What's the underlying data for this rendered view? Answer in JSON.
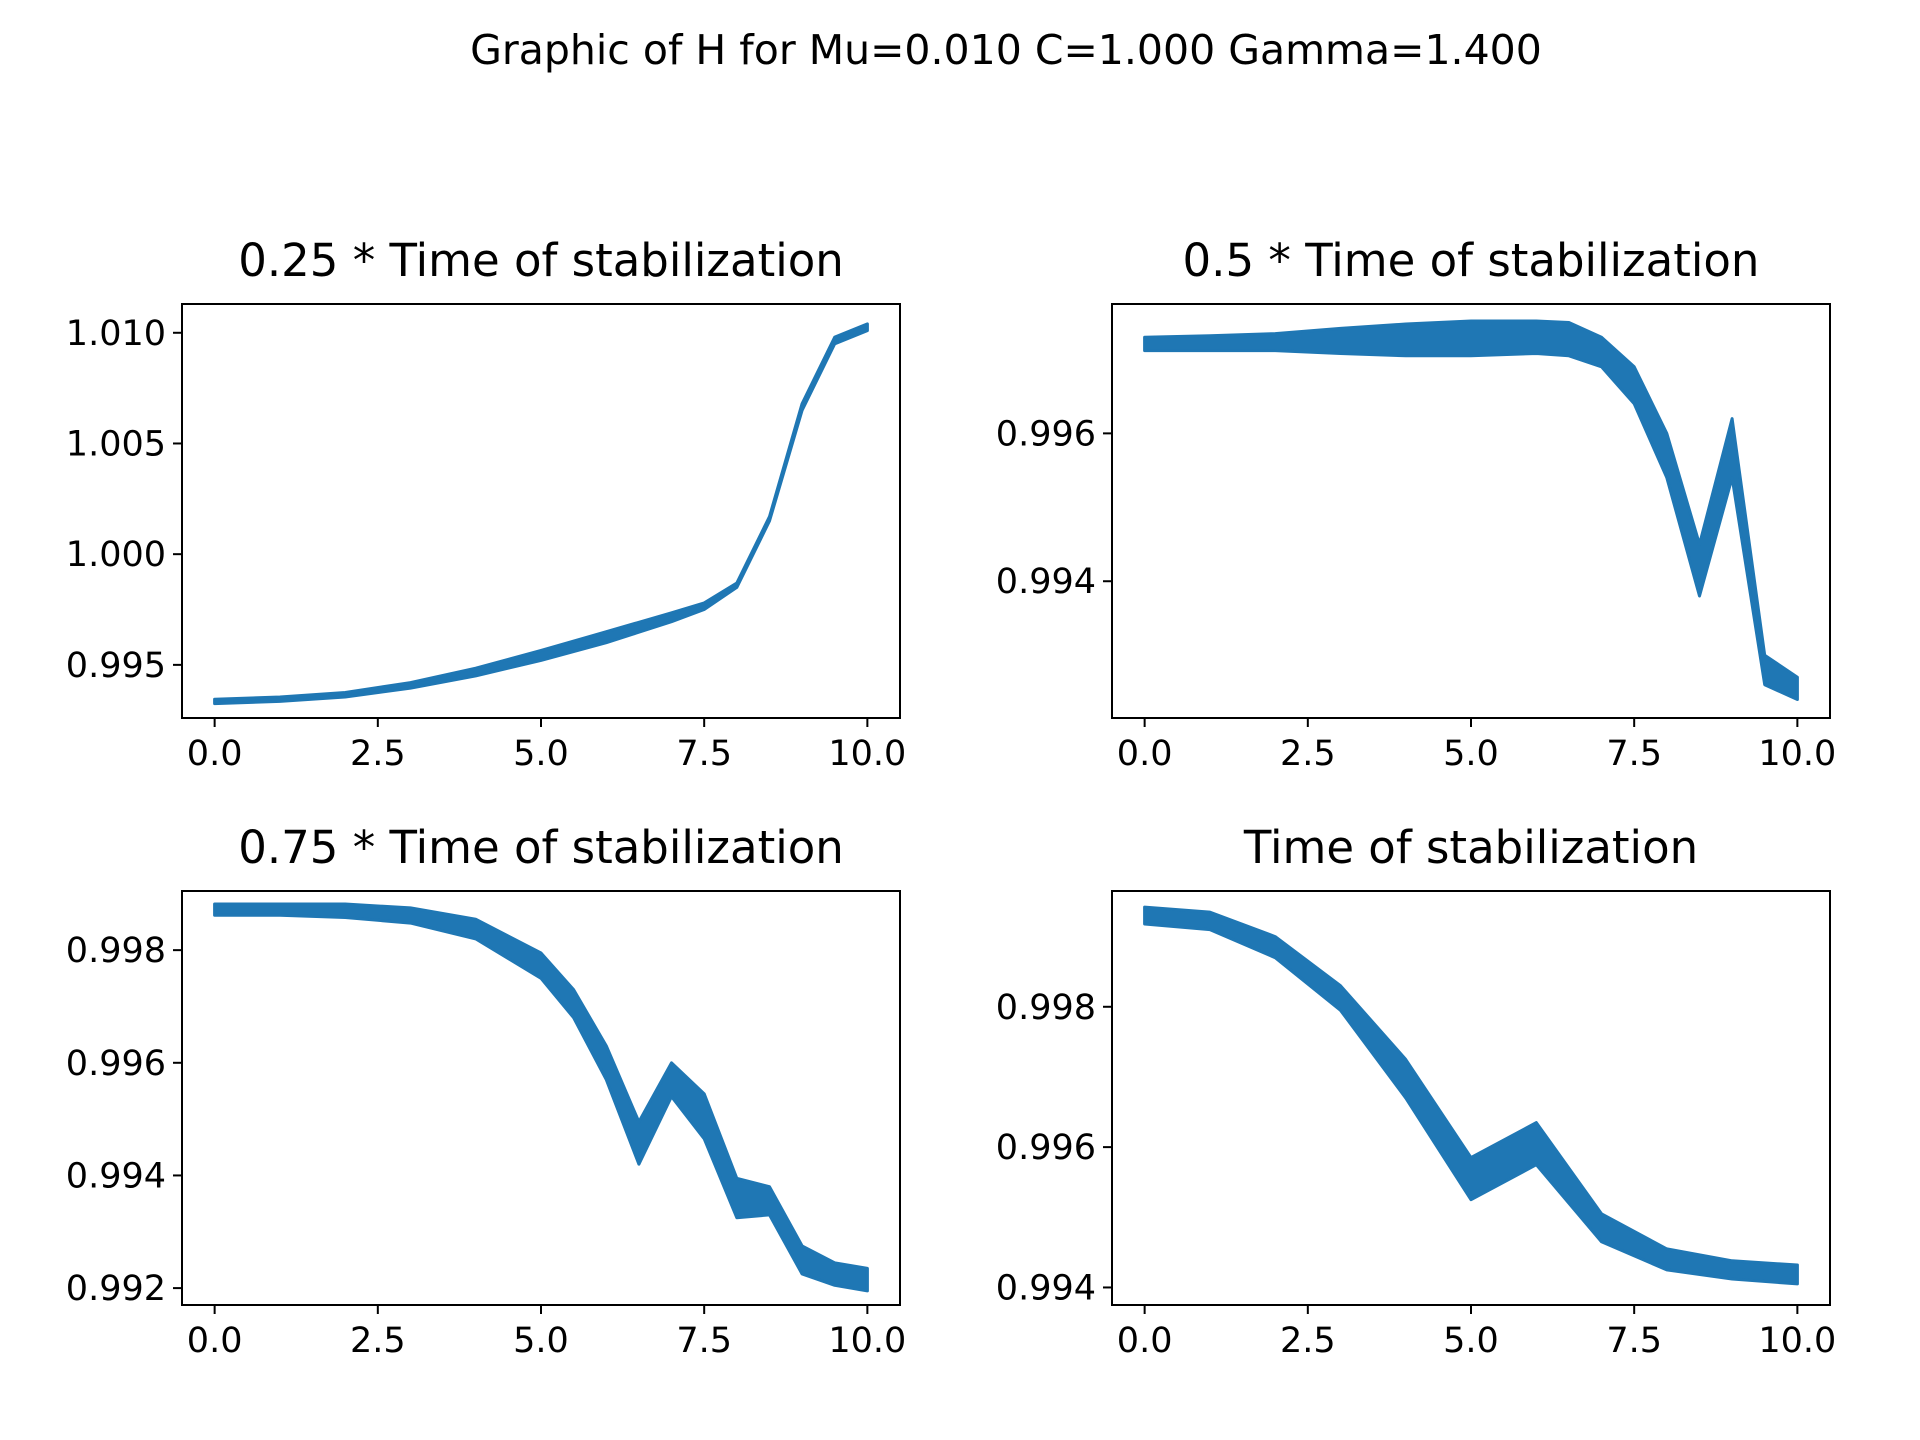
{
  "figure_title": "Graphic of H for Mu=0.010 C=1.000 Gamma=1.400",
  "line_color": "#1f77b4",
  "chart_data": [
    {
      "type": "line",
      "title": "0.25 *  Time of stabilization",
      "xlabel": "",
      "ylabel": "",
      "xlim": [
        -0.5,
        10.5
      ],
      "ylim": [
        0.9926,
        1.0113
      ],
      "xticks": [
        0.0,
        2.5,
        5.0,
        7.5,
        10.0
      ],
      "xtick_labels": [
        "0.0",
        "2.5",
        "5.0",
        "7.5",
        "10.0"
      ],
      "yticks": [
        0.995,
        1.0,
        1.005,
        1.01
      ],
      "ytick_labels": [
        "0.995",
        "1.000",
        "1.005",
        "1.010"
      ],
      "series": [
        {
          "x": [
            0,
            1,
            2,
            3,
            4,
            5,
            6,
            7,
            7.5,
            8,
            8.5,
            9,
            9.5,
            10
          ],
          "lower": [
            0.99325,
            0.99335,
            0.99355,
            0.99395,
            0.9945,
            0.9952,
            0.996,
            0.99695,
            0.9975,
            0.9985,
            1.0015,
            1.0065,
            1.0095,
            1.0101
          ],
          "upper": [
            0.99345,
            0.99355,
            0.99375,
            0.9942,
            0.99485,
            0.99565,
            0.9965,
            0.99735,
            0.9978,
            0.9987,
            1.0017,
            1.0068,
            1.0098,
            1.0104
          ]
        }
      ]
    },
    {
      "type": "line",
      "title": "0.5 *  Time of stabilization",
      "xlabel": "",
      "ylabel": "",
      "xlim": [
        -0.5,
        10.5
      ],
      "ylim": [
        0.99215,
        0.99775
      ],
      "xticks": [
        0.0,
        2.5,
        5.0,
        7.5,
        10.0
      ],
      "xtick_labels": [
        "0.0",
        "2.5",
        "5.0",
        "7.5",
        "10.0"
      ],
      "yticks": [
        0.994,
        0.996
      ],
      "ytick_labels": [
        "0.994",
        "0.996"
      ],
      "series": [
        {
          "x": [
            0,
            1,
            2,
            3,
            4,
            5,
            6,
            6.5,
            7,
            7.5,
            8,
            8.5,
            9,
            9.5,
            10
          ],
          "lower": [
            0.99712,
            0.99712,
            0.99712,
            0.99708,
            0.99705,
            0.99705,
            0.99708,
            0.99705,
            0.9969,
            0.9964,
            0.9954,
            0.9938,
            0.9954,
            0.9926,
            0.9924
          ],
          "upper": [
            0.9973,
            0.99732,
            0.99735,
            0.99742,
            0.99748,
            0.99752,
            0.99752,
            0.9975,
            0.9973,
            0.9969,
            0.996,
            0.9945,
            0.9962,
            0.993,
            0.9927
          ]
        }
      ]
    },
    {
      "type": "line",
      "title": "0.75 *  Time of stabilization",
      "xlabel": "",
      "ylabel": "",
      "xlim": [
        -0.5,
        10.5
      ],
      "ylim": [
        0.9917,
        0.99905
      ],
      "xticks": [
        0.0,
        2.5,
        5.0,
        7.5,
        10.0
      ],
      "xtick_labels": [
        "0.0",
        "2.5",
        "5.0",
        "7.5",
        "10.0"
      ],
      "yticks": [
        0.992,
        0.994,
        0.996,
        0.998
      ],
      "ytick_labels": [
        "0.992",
        "0.994",
        "0.996",
        "0.998"
      ],
      "series": [
        {
          "x": [
            0,
            1,
            2,
            3,
            4,
            5,
            5.5,
            6,
            6.5,
            7,
            7.5,
            8,
            8.5,
            9,
            9.5,
            10
          ],
          "lower": [
            0.99862,
            0.99862,
            0.99858,
            0.99848,
            0.9982,
            0.9975,
            0.9968,
            0.9957,
            0.9942,
            0.9954,
            0.99465,
            0.99325,
            0.9933,
            0.99225,
            0.99205,
            0.99195
          ],
          "upper": [
            0.99882,
            0.99882,
            0.99882,
            0.99875,
            0.99855,
            0.99795,
            0.9973,
            0.9963,
            0.99495,
            0.996,
            0.99545,
            0.99395,
            0.9938,
            0.99275,
            0.99245,
            0.99235
          ]
        }
      ]
    },
    {
      "type": "line",
      "title": "Time of stabilization",
      "xlabel": "",
      "ylabel": "",
      "xlim": [
        -0.5,
        10.5
      ],
      "ylim": [
        0.99375,
        0.99965
      ],
      "xticks": [
        0.0,
        2.5,
        5.0,
        7.5,
        10.0
      ],
      "xtick_labels": [
        "0.0",
        "2.5",
        "5.0",
        "7.5",
        "10.0"
      ],
      "yticks": [
        0.994,
        0.996,
        0.998
      ],
      "ytick_labels": [
        "0.994",
        "0.996",
        "0.998"
      ],
      "series": [
        {
          "x": [
            0,
            1,
            2,
            3,
            4,
            5,
            6,
            7,
            8,
            9,
            10
          ],
          "lower": [
            0.99918,
            0.9991,
            0.9987,
            0.99795,
            0.9967,
            0.99525,
            0.99575,
            0.99465,
            0.99425,
            0.99412,
            0.99405
          ],
          "upper": [
            0.99942,
            0.99935,
            0.999,
            0.9983,
            0.99725,
            0.99585,
            0.99635,
            0.99505,
            0.99455,
            0.99438,
            0.99432
          ]
        }
      ]
    }
  ]
}
